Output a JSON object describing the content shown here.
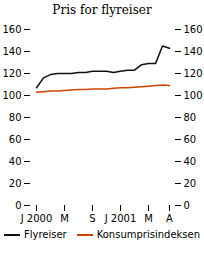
{
  "chart_data": {
    "type": "line",
    "title": "Pris for flyreiser",
    "categories": [
      "J 2000",
      null,
      null,
      null,
      "M",
      null,
      null,
      null,
      "S",
      null,
      null,
      null,
      "J 2001",
      null,
      null,
      null,
      "M",
      null,
      null,
      "A"
    ],
    "series": [
      {
        "name": "Flyreiser",
        "color": "#111111",
        "values": [
          107,
          116,
          119,
          120,
          120,
          120,
          121,
          121,
          122,
          122,
          122,
          121,
          122,
          123,
          123,
          128,
          129,
          129,
          145,
          143
        ]
      },
      {
        "name": "Konsumprisindeksen",
        "color": "#cc4400",
        "values": [
          103,
          103.5,
          104,
          104,
          104.5,
          105,
          105.5,
          105.5,
          106,
          106,
          106,
          106.5,
          107,
          107,
          107.5,
          108,
          108.5,
          109,
          109.5,
          109
        ]
      }
    ],
    "ylim": [
      0,
      160
    ],
    "yticks": [
      0,
      20,
      40,
      60,
      80,
      100,
      120,
      140,
      160
    ],
    "grid": false
  }
}
